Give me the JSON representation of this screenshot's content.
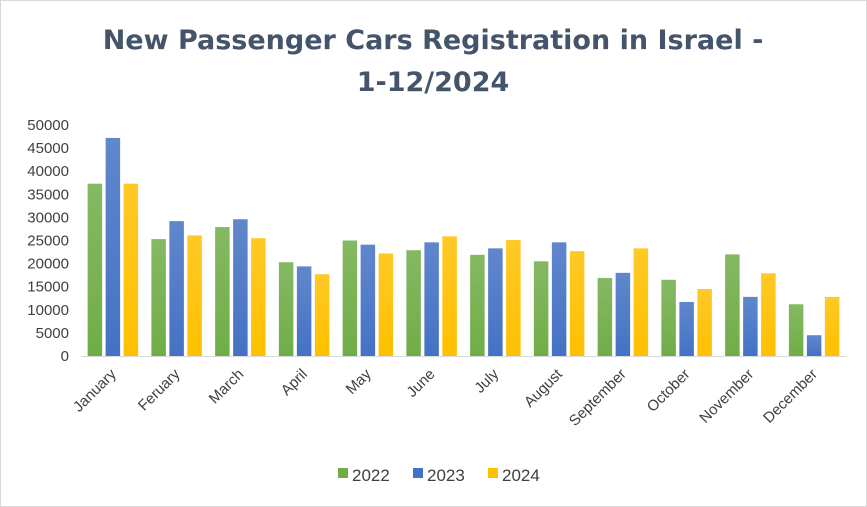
{
  "chart_data": {
    "type": "bar",
    "title_lines": [
      "New Passenger Cars Registration in Israel -",
      "1-12/2024"
    ],
    "xlabel": "",
    "ylabel": "",
    "ylim": [
      0,
      50000
    ],
    "yticks": [
      "0",
      "5000",
      "10000",
      "15000",
      "20000",
      "25000",
      "30000",
      "35000",
      "40000",
      "45000",
      "50000"
    ],
    "grid": false,
    "legend_position": "bottom",
    "categories": [
      "January",
      "Feruary",
      "March",
      "April",
      "May",
      "June",
      "July",
      "August",
      "September",
      "October",
      "November",
      "December"
    ],
    "series": [
      {
        "name": "2022",
        "color": "#70ad47",
        "values": [
          37300,
          25300,
          27900,
          20300,
          25000,
          22900,
          21900,
          20500,
          16900,
          16500,
          22000,
          11200
        ]
      },
      {
        "name": "2023",
        "color": "#4472c4",
        "values": [
          47200,
          29200,
          29600,
          19400,
          24100,
          24600,
          23300,
          24600,
          18000,
          11700,
          12800,
          4500
        ]
      },
      {
        "name": "2024",
        "color": "#ffc000",
        "values": [
          37300,
          26100,
          25500,
          17700,
          22200,
          25900,
          25100,
          22700,
          23300,
          14500,
          17900,
          12800
        ]
      }
    ]
  }
}
